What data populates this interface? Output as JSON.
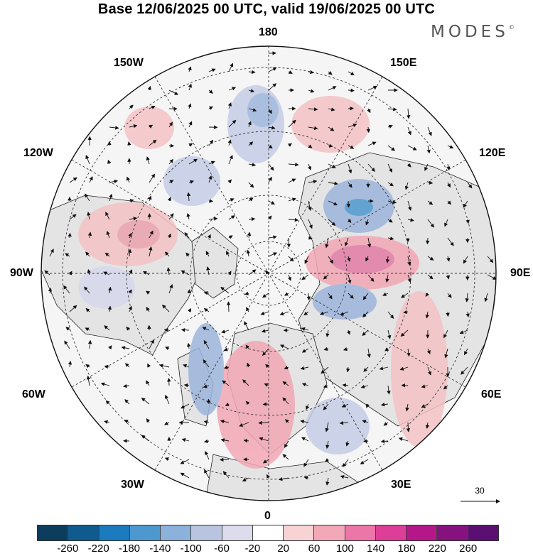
{
  "title": "Base 12/06/2025 00 UTC, valid 19/06/2025 00 UTC",
  "brand": {
    "text": "MODES",
    "mark": "©"
  },
  "longitude_labels": {
    "top": "180",
    "bottom": "0",
    "left": "90W",
    "right": "90E",
    "upper_left_1": "150W",
    "upper_left_2": "120W",
    "lower_left_1": "60W",
    "lower_left_2": "30W",
    "upper_right_1": "150E",
    "upper_right_2": "120E",
    "lower_right_1": "60E",
    "lower_right_2": "30E"
  },
  "reference_vector": {
    "label": "30"
  },
  "colorbar": {
    "ticks": [
      "-260",
      "-220",
      "-180",
      "-140",
      "-100",
      "-60",
      "-20",
      "20",
      "60",
      "100",
      "140",
      "180",
      "220",
      "260"
    ],
    "colors": [
      "#0c3d5c",
      "#0f5a8f",
      "#1c7bbf",
      "#4d98cf",
      "#8cb1da",
      "#b9c4e1",
      "#dcdcec",
      "#ffffff",
      "#f8d3d4",
      "#f2a8b6",
      "#ec76a8",
      "#dd3e98",
      "#b5178a",
      "#86127f",
      "#5c0f72"
    ]
  },
  "colors": {
    "land": "#e6e6e6",
    "ocean": "#f4f4f4",
    "positive_anomaly": "#f2a8b6",
    "negative_anomaly": "#8cb1da"
  }
}
